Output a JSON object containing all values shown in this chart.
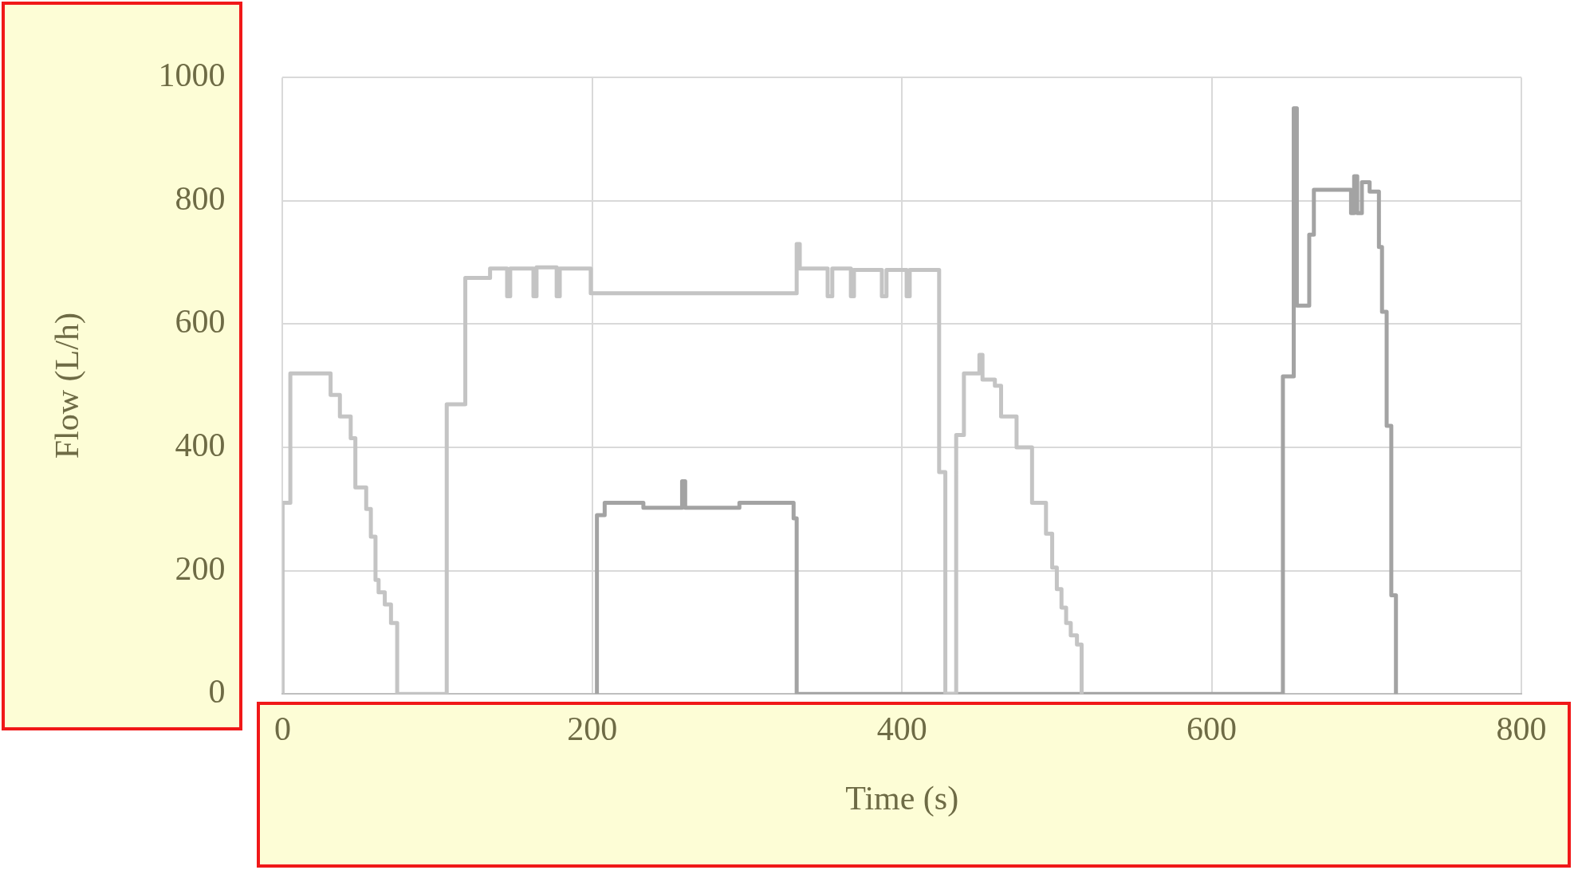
{
  "chart_data": {
    "type": "line",
    "xlabel": "Time (s)",
    "ylabel": "Flow (L/h)",
    "xlim": [
      0,
      800
    ],
    "xticks": [
      0,
      200,
      400,
      600,
      800
    ],
    "ylim": [
      0,
      1000
    ],
    "yticks": [
      0,
      200,
      400,
      600,
      800,
      1000
    ],
    "grid": true,
    "legend": false,
    "marker": "none",
    "line_style": "solid",
    "series": [
      {
        "color": "#c4c4c4",
        "x": [
          0,
          0,
          5,
          5,
          31,
          31,
          37,
          37,
          44,
          44,
          47,
          47,
          54,
          54,
          57,
          57,
          60,
          60,
          62,
          62,
          66,
          66,
          70,
          70,
          74,
          74,
          106,
          106,
          118,
          118,
          134,
          134,
          145,
          145,
          147,
          147,
          162,
          162,
          164,
          164,
          177,
          177,
          179,
          179,
          199,
          199,
          332,
          332,
          334,
          334,
          352,
          352,
          355,
          355,
          367,
          367,
          369,
          369,
          387,
          387,
          390,
          390,
          403,
          403,
          405,
          405,
          424,
          424,
          428,
          428,
          435,
          435,
          440,
          440,
          450,
          450,
          452,
          452,
          460,
          460,
          464,
          464,
          474,
          474,
          484,
          484,
          493,
          493,
          497,
          497,
          500,
          500,
          503,
          503,
          506,
          506,
          509,
          509,
          513,
          513,
          516,
          516
        ],
        "values": [
          0,
          310,
          310,
          520,
          520,
          485,
          485,
          450,
          450,
          415,
          415,
          335,
          335,
          300,
          300,
          255,
          255,
          185,
          185,
          165,
          165,
          145,
          145,
          115,
          115,
          0,
          0,
          470,
          470,
          675,
          675,
          690,
          690,
          645,
          645,
          690,
          690,
          645,
          645,
          692,
          692,
          645,
          645,
          690,
          690,
          650,
          650,
          730,
          730,
          690,
          690,
          645,
          645,
          690,
          690,
          645,
          645,
          688,
          688,
          645,
          645,
          688,
          688,
          645,
          645,
          688,
          688,
          360,
          360,
          0,
          0,
          420,
          420,
          520,
          520,
          550,
          550,
          510,
          510,
          500,
          500,
          450,
          450,
          400,
          400,
          310,
          310,
          260,
          260,
          205,
          205,
          170,
          170,
          140,
          140,
          115,
          115,
          95,
          95,
          80,
          80,
          0
        ]
      },
      {
        "color": "#a3a3a3",
        "x": [
          203,
          203,
          208,
          208,
          233,
          233,
          258,
          258,
          260,
          260,
          295,
          295,
          330,
          330,
          332,
          332,
          646,
          646,
          653,
          653,
          655,
          655,
          663,
          663,
          666,
          666,
          690,
          690,
          692,
          692,
          694,
          694,
          697,
          697,
          702,
          702,
          708,
          708,
          710,
          710,
          713,
          713,
          716,
          716,
          719,
          719
        ],
        "values": [
          0,
          290,
          290,
          310,
          310,
          302,
          302,
          345,
          345,
          302,
          302,
          310,
          310,
          285,
          285,
          0,
          0,
          515,
          515,
          950,
          950,
          630,
          630,
          745,
          745,
          818,
          818,
          780,
          780,
          840,
          840,
          780,
          780,
          830,
          830,
          815,
          815,
          725,
          725,
          620,
          620,
          435,
          435,
          160,
          160,
          0
        ]
      }
    ]
  }
}
